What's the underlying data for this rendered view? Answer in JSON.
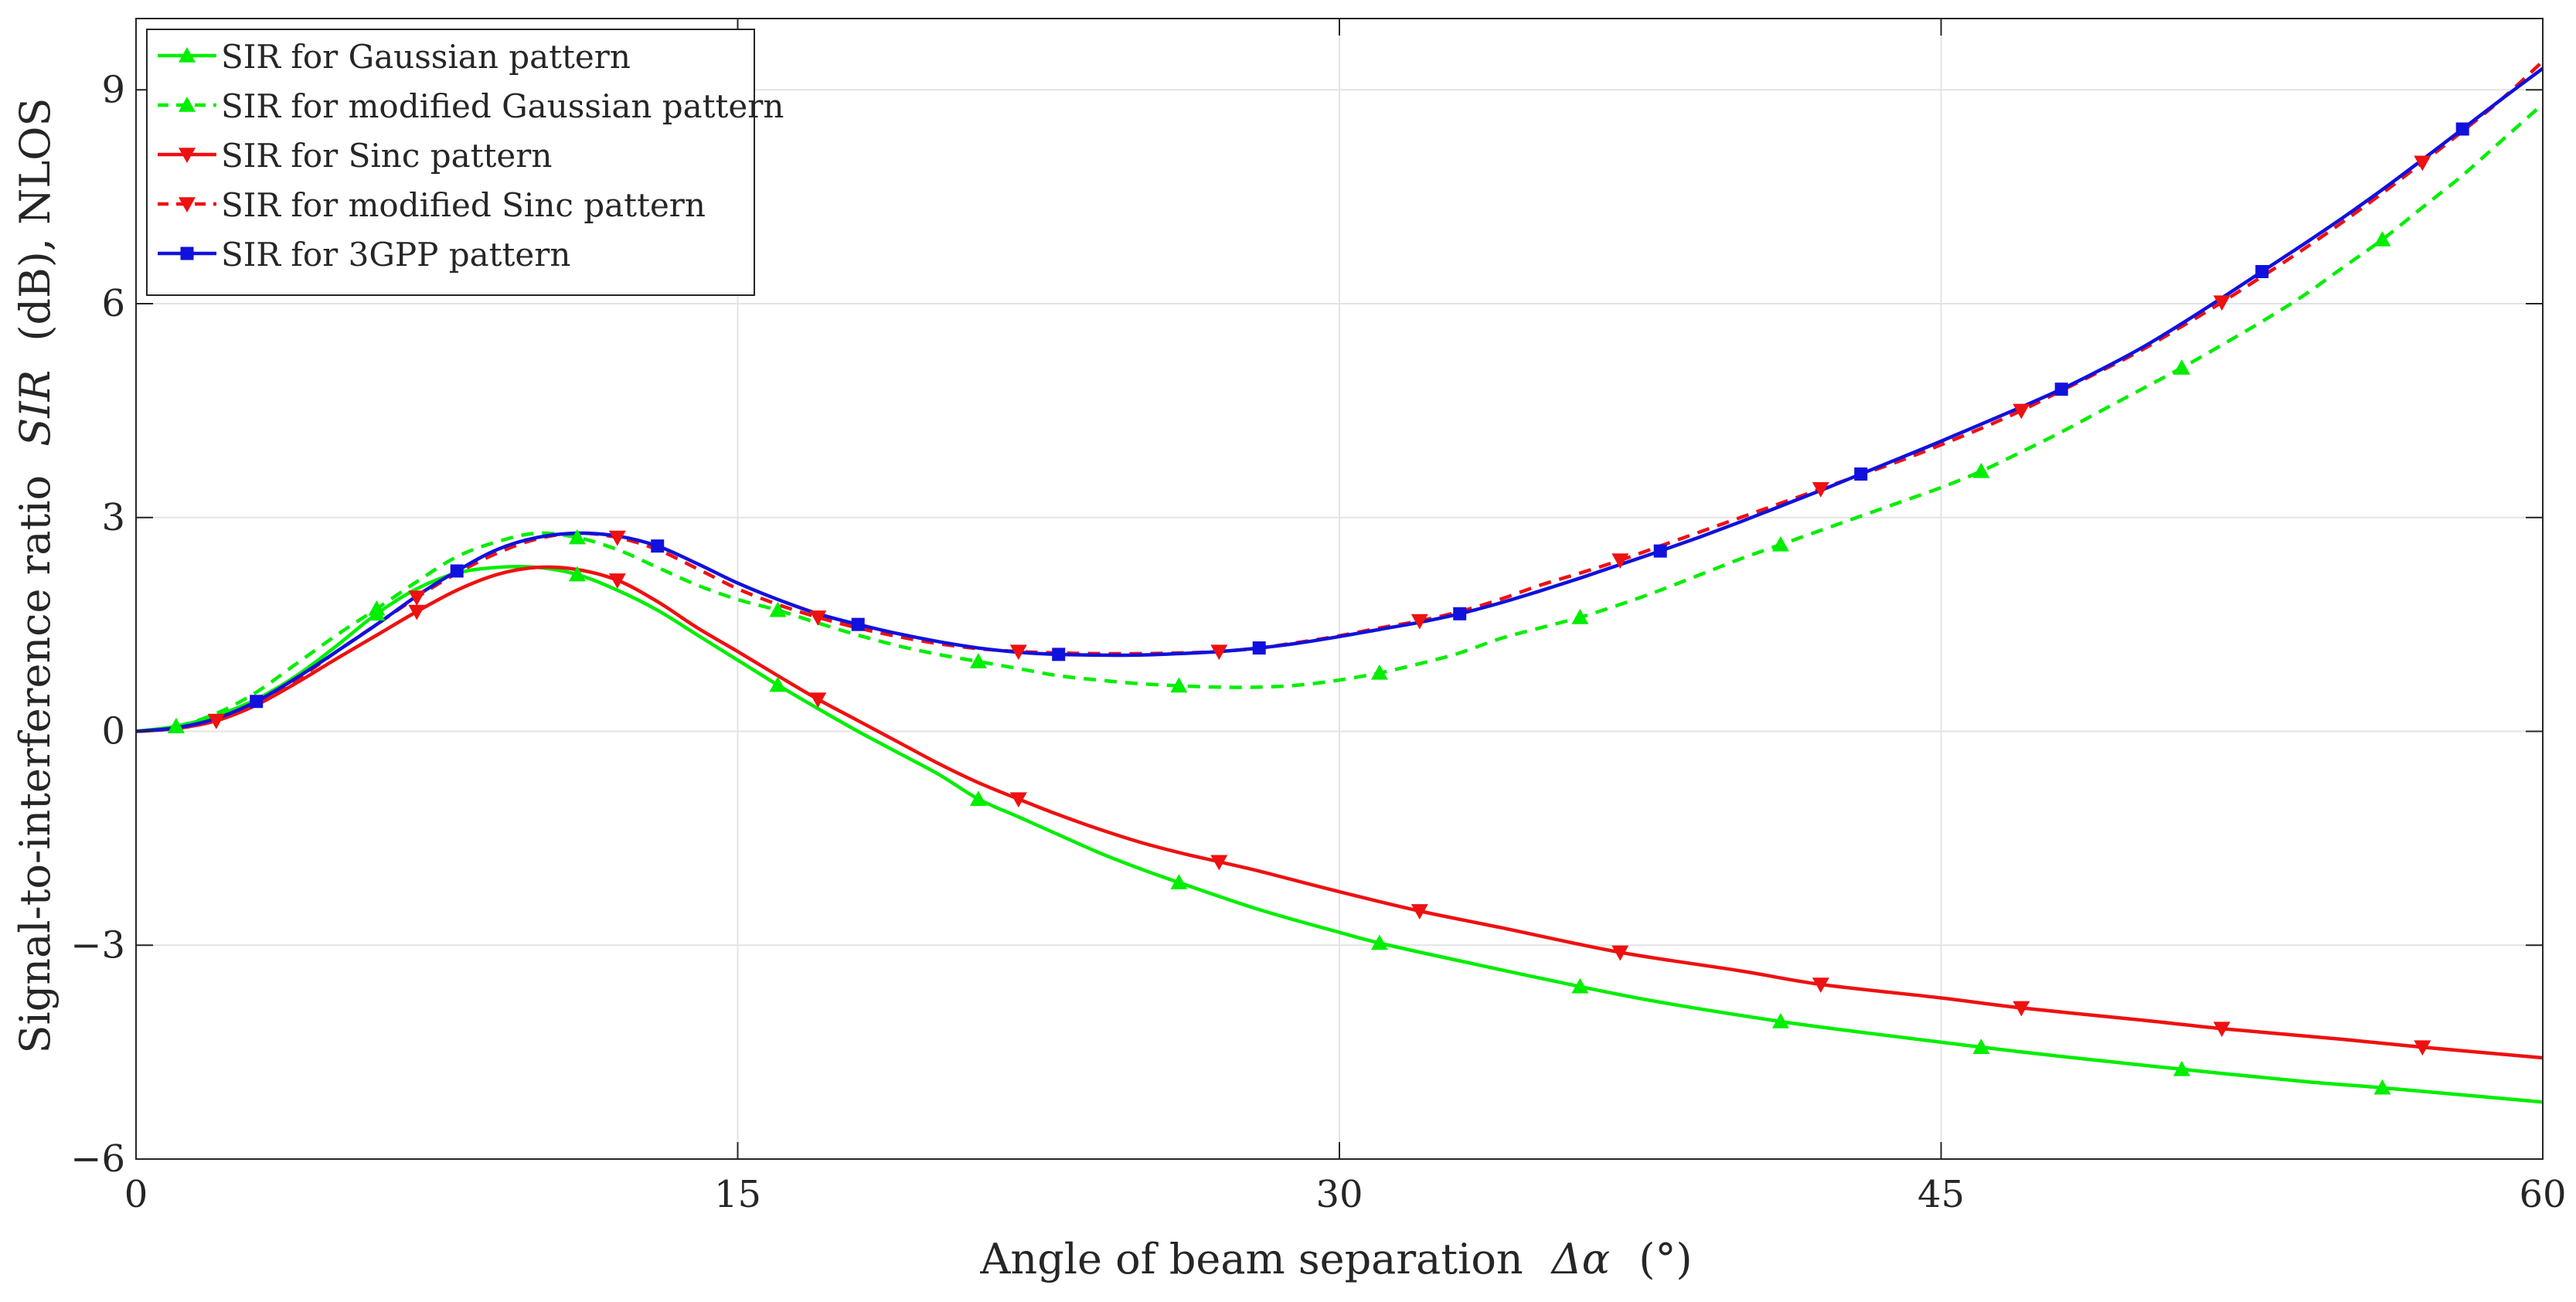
{
  "chart_data": {
    "type": "line",
    "title": "",
    "xlabel_prefix": "Angle of beam separation",
    "xlabel_symbol": "Δα",
    "xlabel_unit": "(°)",
    "ylabel_prefix": "Signal-to-interference ratio",
    "ylabel_symbol": "SIR",
    "ylabel_suffix": "(dB), NLOS",
    "xlim": [
      0,
      60
    ],
    "ylim": [
      -6,
      10
    ],
    "xticks": [
      0,
      15,
      30,
      45,
      60
    ],
    "xtick_labels": [
      "0",
      "15",
      "30",
      "45",
      "60"
    ],
    "yticks": [
      -6,
      -3,
      0,
      3,
      6,
      9
    ],
    "ytick_labels": [
      "−6",
      "−3",
      "0",
      "3",
      "6",
      "9"
    ],
    "grid": true,
    "legend_position": "top-left",
    "colors": {
      "green": "#00ee00",
      "red": "#ee1111",
      "blue": "#1111dd",
      "grid": "#e3e3e3",
      "axis": "#262626"
    },
    "series": [
      {
        "name": "SIR for Gaussian pattern",
        "color": "#00ee00",
        "dash": "solid",
        "marker": "triangle-up",
        "x": [
          0,
          1,
          2,
          3,
          4,
          5,
          6,
          7,
          8,
          9,
          10,
          11,
          12,
          13,
          14,
          15,
          16,
          17,
          18,
          19,
          20,
          21,
          22,
          23,
          24,
          25,
          26,
          28,
          30,
          31,
          33,
          36,
          38,
          41,
          43,
          46,
          48,
          51,
          54,
          56,
          58,
          60
        ],
        "y": [
          0,
          0.07,
          0.22,
          0.45,
          0.78,
          1.2,
          1.65,
          2.0,
          2.22,
          2.3,
          2.3,
          2.2,
          1.98,
          1.7,
          1.35,
          1.0,
          0.65,
          0.32,
          0.0,
          -0.3,
          -0.6,
          -0.95,
          -1.2,
          -1.45,
          -1.7,
          -1.92,
          -2.12,
          -2.5,
          -2.82,
          -2.97,
          -3.22,
          -3.58,
          -3.8,
          -4.07,
          -4.22,
          -4.43,
          -4.56,
          -4.74,
          -4.91,
          -5.0,
          -5.1,
          -5.2
        ],
        "marker_x": [
          1,
          6,
          11,
          16,
          21,
          26,
          31,
          36,
          41,
          46,
          51,
          56
        ]
      },
      {
        "name": "SIR for modified Gaussian pattern",
        "color": "#00ee00",
        "dash": "dashed",
        "marker": "triangle-up",
        "x": [
          0,
          1,
          2,
          3,
          4,
          5,
          6,
          7,
          8,
          9,
          10,
          11,
          12,
          13,
          14,
          15,
          16,
          17,
          18,
          19,
          20,
          21,
          22,
          23,
          24,
          25,
          26,
          27,
          28,
          29,
          30,
          31,
          32,
          33,
          34,
          35,
          36,
          37,
          38,
          39,
          40,
          41,
          42,
          43,
          44,
          45,
          46,
          47,
          48,
          49,
          50,
          51,
          52,
          53,
          54,
          55,
          56,
          57,
          58,
          59,
          60
        ],
        "y": [
          0,
          0.07,
          0.25,
          0.55,
          0.95,
          1.35,
          1.72,
          2.1,
          2.45,
          2.66,
          2.78,
          2.72,
          2.55,
          2.3,
          2.05,
          1.85,
          1.7,
          1.52,
          1.35,
          1.2,
          1.08,
          0.98,
          0.88,
          0.78,
          0.72,
          0.67,
          0.64,
          0.62,
          0.62,
          0.65,
          0.72,
          0.82,
          0.95,
          1.1,
          1.3,
          1.45,
          1.6,
          1.78,
          1.98,
          2.2,
          2.42,
          2.62,
          2.82,
          3.02,
          3.22,
          3.42,
          3.65,
          3.92,
          4.2,
          4.5,
          4.8,
          5.1,
          5.42,
          5.75,
          6.1,
          6.5,
          6.9,
          7.35,
          7.8,
          8.3,
          8.8
        ],
        "marker_x": [
          1,
          6,
          11,
          16,
          21,
          26,
          31,
          36,
          41,
          46,
          51,
          56
        ]
      },
      {
        "name": "SIR for Sinc pattern",
        "color": "#ee1111",
        "dash": "solid",
        "marker": "triangle-down",
        "x": [
          0,
          1,
          2,
          3,
          4,
          5,
          6,
          7,
          8,
          9,
          10,
          11,
          12,
          13,
          14,
          15,
          16,
          17,
          18,
          19,
          20,
          21,
          22,
          23,
          24,
          25,
          26,
          27,
          28,
          30,
          32,
          34,
          37,
          40,
          42,
          45,
          47,
          50,
          52,
          55,
          57,
          60
        ],
        "y": [
          0,
          0.04,
          0.15,
          0.37,
          0.68,
          1.02,
          1.35,
          1.68,
          1.98,
          2.2,
          2.3,
          2.27,
          2.12,
          1.82,
          1.45,
          1.12,
          0.78,
          0.45,
          0.15,
          -0.15,
          -0.45,
          -0.72,
          -0.95,
          -1.17,
          -1.37,
          -1.55,
          -1.7,
          -1.83,
          -1.96,
          -2.25,
          -2.52,
          -2.75,
          -3.1,
          -3.36,
          -3.55,
          -3.74,
          -3.88,
          -4.05,
          -4.17,
          -4.32,
          -4.43,
          -4.58
        ],
        "marker_x": [
          2,
          7,
          12,
          17,
          22,
          27,
          32,
          37,
          42,
          47,
          52,
          57
        ]
      },
      {
        "name": "SIR for modified Sinc pattern",
        "color": "#ee1111",
        "dash": "dashed",
        "marker": "triangle-down",
        "x": [
          0,
          1,
          2,
          3,
          4,
          5,
          6,
          7,
          8,
          9,
          10,
          11,
          12,
          13,
          14,
          15,
          16,
          17,
          18,
          19,
          20,
          21,
          22,
          23,
          24,
          25,
          26,
          27,
          28,
          29,
          30,
          31,
          32,
          33,
          34,
          35,
          36,
          37,
          38,
          39,
          40,
          41,
          42,
          43,
          44,
          45,
          46,
          47,
          48,
          49,
          50,
          51,
          52,
          53,
          54,
          55,
          56,
          57,
          58,
          59,
          60
        ],
        "y": [
          0,
          0.04,
          0.15,
          0.38,
          0.72,
          1.12,
          1.5,
          1.88,
          2.22,
          2.5,
          2.7,
          2.78,
          2.72,
          2.55,
          2.28,
          2.0,
          1.78,
          1.6,
          1.45,
          1.33,
          1.23,
          1.16,
          1.12,
          1.1,
          1.09,
          1.09,
          1.1,
          1.12,
          1.17,
          1.25,
          1.34,
          1.45,
          1.55,
          1.68,
          1.85,
          2.05,
          2.22,
          2.4,
          2.6,
          2.8,
          3.0,
          3.2,
          3.4,
          3.6,
          3.8,
          4.02,
          4.25,
          4.5,
          4.78,
          5.06,
          5.35,
          5.68,
          6.02,
          6.38,
          6.75,
          7.14,
          7.55,
          7.98,
          8.42,
          8.88,
          9.4
        ],
        "marker_x": [
          2,
          7,
          12,
          17,
          22,
          27,
          32,
          37,
          42,
          47,
          52,
          57
        ]
      },
      {
        "name": "SIR for 3GPP pattern",
        "color": "#1111dd",
        "dash": "solid",
        "marker": "square",
        "x": [
          0,
          1,
          2,
          3,
          4,
          5,
          6,
          7,
          8,
          9,
          10,
          11,
          12,
          13,
          14,
          15,
          16,
          17,
          18,
          19,
          20,
          21,
          22,
          23,
          24,
          25,
          26,
          27,
          28,
          29,
          30,
          31,
          32,
          33,
          34,
          35,
          36,
          37,
          38,
          39,
          40,
          41,
          42,
          43,
          44,
          45,
          46,
          47,
          48,
          49,
          50,
          51,
          52,
          53,
          54,
          55,
          56,
          57,
          58,
          59,
          60
        ],
        "y": [
          0,
          0.05,
          0.18,
          0.42,
          0.75,
          1.12,
          1.5,
          1.9,
          2.25,
          2.55,
          2.72,
          2.78,
          2.74,
          2.6,
          2.35,
          2.08,
          1.85,
          1.65,
          1.5,
          1.37,
          1.26,
          1.17,
          1.11,
          1.08,
          1.07,
          1.07,
          1.09,
          1.12,
          1.17,
          1.24,
          1.33,
          1.43,
          1.53,
          1.65,
          1.8,
          1.97,
          2.15,
          2.34,
          2.53,
          2.73,
          2.94,
          3.16,
          3.38,
          3.61,
          3.84,
          4.07,
          4.31,
          4.55,
          4.8,
          5.08,
          5.38,
          5.72,
          6.08,
          6.45,
          6.82,
          7.2,
          7.6,
          8.02,
          8.45,
          8.88,
          9.3
        ],
        "marker_x": [
          3,
          8,
          13,
          18,
          23,
          28,
          33,
          38,
          43,
          48,
          53,
          58
        ]
      }
    ]
  }
}
